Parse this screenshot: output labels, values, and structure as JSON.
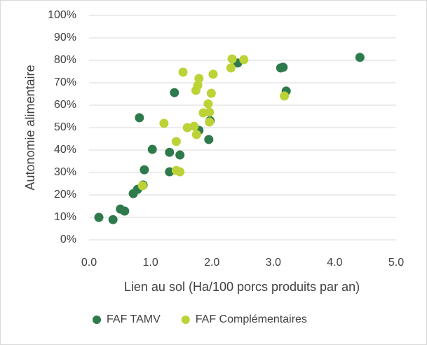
{
  "chart_data": {
    "type": "scatter",
    "x_label": "Lien au sol (Ha/100 porcs produits par an)",
    "y_label": "Autonomie alimentaire",
    "xlim": [
      0,
      5
    ],
    "ylim": [
      0,
      100
    ],
    "xticks": [
      {
        "value": 0,
        "label": "0.0"
      },
      {
        "value": 1,
        "label": "1.0"
      },
      {
        "value": 2,
        "label": "2.0"
      },
      {
        "value": 3,
        "label": "3.0"
      },
      {
        "value": 4,
        "label": "4.0"
      },
      {
        "value": 5,
        "label": "5.0"
      }
    ],
    "yticks": [
      {
        "value": 0,
        "label": "0%"
      },
      {
        "value": 10,
        "label": "10%"
      },
      {
        "value": 20,
        "label": "20%"
      },
      {
        "value": 30,
        "label": "30%"
      },
      {
        "value": 40,
        "label": "40%"
      },
      {
        "value": 50,
        "label": "50%"
      },
      {
        "value": 60,
        "label": "60%"
      },
      {
        "value": 70,
        "label": "70%"
      },
      {
        "value": 80,
        "label": "80%"
      },
      {
        "value": 90,
        "label": "90%"
      },
      {
        "value": 100,
        "label": "100%"
      }
    ],
    "grid": true,
    "legend": "bottom",
    "series": [
      {
        "name": "FAF TAMV",
        "color": "#2e7a4c",
        "x": [
          0.16,
          0.39,
          0.51,
          0.58,
          0.72,
          0.79,
          0.88,
          0.9,
          0.82,
          1.03,
          1.31,
          1.31,
          1.48,
          1.39,
          1.79,
          1.97,
          1.95,
          2.42,
          3.12,
          3.16,
          3.21,
          4.41
        ],
        "values": [
          10,
          9,
          13.7,
          12.8,
          20.6,
          22.5,
          24.4,
          31.2,
          54.4,
          40.3,
          39,
          30.3,
          37.8,
          65.6,
          48.8,
          53.1,
          44.7,
          78.8,
          76.6,
          76.9,
          66.3,
          81.3
        ]
      },
      {
        "name": "FAF Complémentaires",
        "color": "#bcd236",
        "x": [
          0.87,
          1.22,
          1.42,
          1.42,
          1.48,
          1.53,
          1.6,
          1.71,
          1.75,
          1.74,
          1.77,
          1.79,
          1.86,
          1.94,
          1.96,
          1.96,
          1.99,
          2.02,
          2.31,
          2.33,
          2.52,
          3.18
        ],
        "values": [
          24.1,
          51.9,
          43.8,
          30.9,
          30.3,
          74.7,
          50,
          50.6,
          46.9,
          66.6,
          68.8,
          71.9,
          56.6,
          60.6,
          56.9,
          52.5,
          65.3,
          73.8,
          76.6,
          80.6,
          80.3,
          64.1
        ]
      }
    ]
  }
}
